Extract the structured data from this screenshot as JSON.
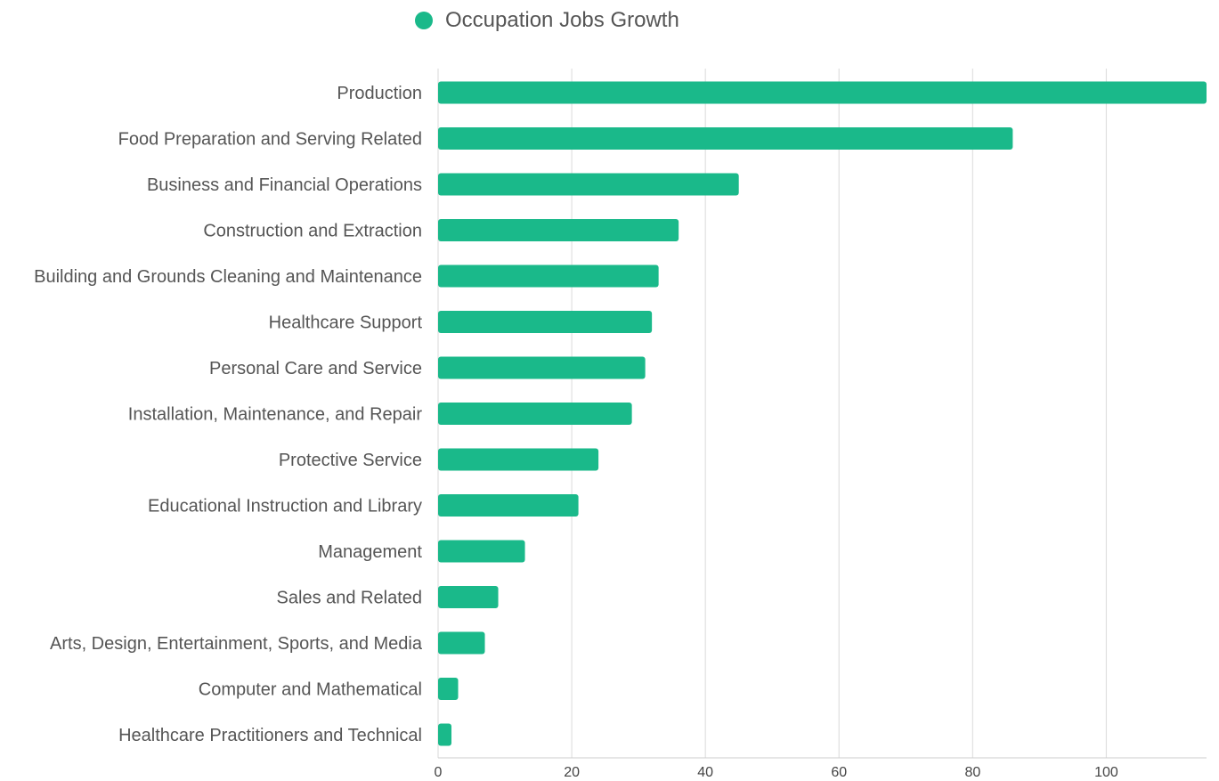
{
  "chart_data": {
    "type": "bar",
    "orientation": "horizontal",
    "legend": {
      "position": "top-center",
      "entries": [
        "Occupation Jobs Growth"
      ]
    },
    "categories": [
      "Production",
      "Food Preparation and Serving Related",
      "Business and Financial Operations",
      "Construction and Extraction",
      "Building and Grounds Cleaning and Maintenance",
      "Healthcare Support",
      "Personal Care and Service",
      "Installation, Maintenance, and Repair",
      "Protective Service",
      "Educational Instruction and Library",
      "Management",
      "Sales and Related",
      "Arts, Design, Entertainment, Sports, and Media",
      "Computer and Mathematical",
      "Healthcare Practitioners and Technical"
    ],
    "series": [
      {
        "name": "Occupation Jobs Growth",
        "color": "#1ab98a",
        "values": [
          115,
          86,
          45,
          36,
          33,
          32,
          31,
          29,
          24,
          21,
          13,
          9,
          7,
          3,
          2
        ]
      }
    ],
    "xlim": [
      0,
      115
    ],
    "xticks": [
      "0",
      "20",
      "40",
      "60",
      "80",
      "100"
    ],
    "grid": true,
    "colors": {
      "bar": "#1ab98a",
      "grid": "#e0e0e0",
      "axis_text": "#444444",
      "category_text": "#555555"
    }
  }
}
